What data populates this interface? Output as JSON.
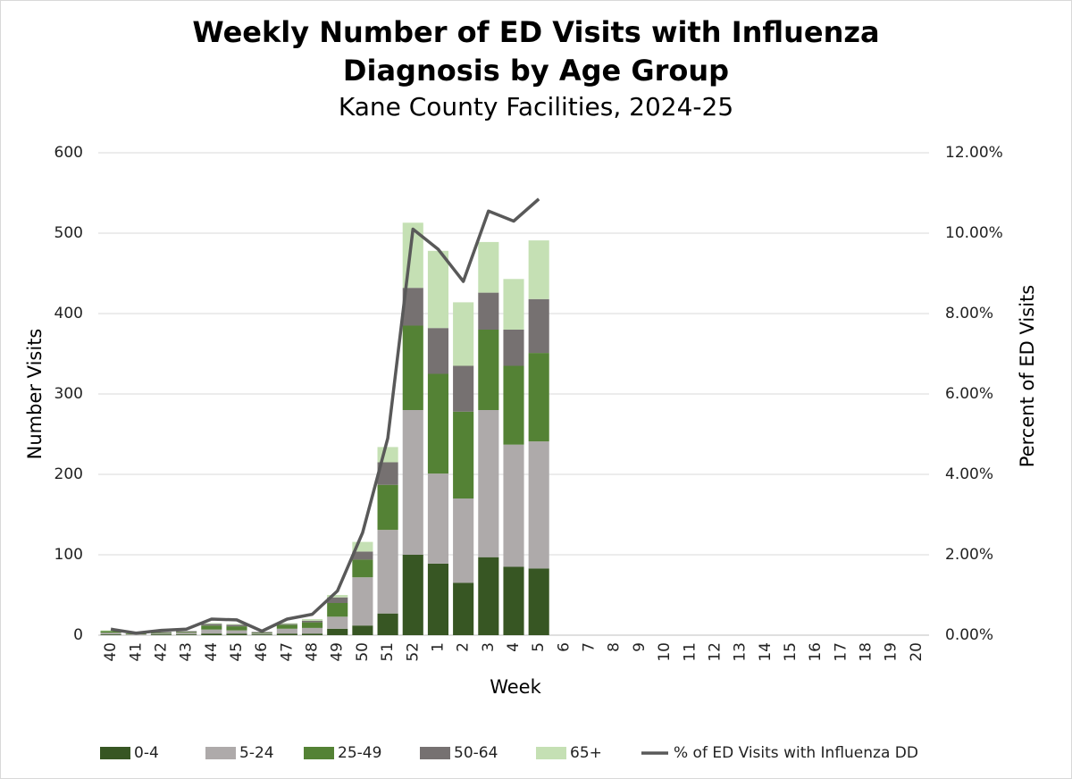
{
  "chart_data": {
    "type": "bar",
    "title": [
      "Weekly Number of ED Visits with Influenza",
      "Diagnosis by Age Group"
    ],
    "subtitle": "Kane County Facilities, 2024-25",
    "x_label": "Week",
    "y_label": "Number Visits",
    "y2_label": "Percent of ED Visits",
    "categories": [
      "40",
      "41",
      "42",
      "43",
      "44",
      "45",
      "46",
      "47",
      "48",
      "49",
      "50",
      "51",
      "52",
      "1",
      "2",
      "3",
      "4",
      "5",
      "6",
      "7",
      "8",
      "9",
      "10",
      "11",
      "12",
      "13",
      "14",
      "15",
      "16",
      "17",
      "18",
      "19",
      "20"
    ],
    "stacked": true,
    "grid": true,
    "legend": "bottom",
    "ylim": [
      0,
      600
    ],
    "yticks": [
      0,
      100,
      200,
      300,
      400,
      500,
      600
    ],
    "y2lim": [
      0,
      12
    ],
    "y2ticks": [
      {
        "value": 0,
        "label": "0.00%"
      },
      {
        "value": 2,
        "label": "2.00%"
      },
      {
        "value": 4,
        "label": "4.00%"
      },
      {
        "value": 6,
        "label": "6.00%"
      },
      {
        "value": 8,
        "label": "8.00%"
      },
      {
        "value": 10,
        "label": "10.00%"
      },
      {
        "value": 12,
        "label": "12.00%"
      }
    ],
    "series": [
      {
        "name": "0-4",
        "color": "#375623",
        "type": "bar",
        "values": [
          1,
          0,
          1,
          1,
          2,
          2,
          1,
          2,
          2,
          8,
          12,
          27,
          100,
          89,
          65,
          97,
          85,
          83,
          null,
          null,
          null,
          null,
          null,
          null,
          null,
          null,
          null,
          null,
          null,
          null,
          null,
          null,
          null
        ]
      },
      {
        "name": "5-24",
        "color": "#aeaaaa",
        "type": "bar",
        "values": [
          2,
          1,
          1,
          2,
          5,
          4,
          1,
          6,
          7,
          15,
          60,
          104,
          180,
          112,
          105,
          183,
          152,
          158,
          null,
          null,
          null,
          null,
          null,
          null,
          null,
          null,
          null,
          null,
          null,
          null,
          null,
          null,
          null
        ]
      },
      {
        "name": "25-49",
        "color": "#548235",
        "type": "bar",
        "values": [
          2,
          1,
          1,
          1,
          5,
          5,
          1,
          5,
          7,
          17,
          22,
          56,
          105,
          124,
          108,
          100,
          98,
          110,
          null,
          null,
          null,
          null,
          null,
          null,
          null,
          null,
          null,
          null,
          null,
          null,
          null,
          null,
          null
        ]
      },
      {
        "name": "50-64",
        "color": "#767171",
        "type": "bar",
        "values": [
          0,
          0,
          1,
          1,
          2,
          2,
          1,
          1,
          2,
          7,
          10,
          28,
          47,
          57,
          57,
          46,
          45,
          67,
          null,
          null,
          null,
          null,
          null,
          null,
          null,
          null,
          null,
          null,
          null,
          null,
          null,
          null,
          null
        ]
      },
      {
        "name": "65+",
        "color": "#c5e0b4",
        "type": "bar",
        "values": [
          1,
          0,
          0,
          0,
          1,
          1,
          0,
          1,
          2,
          3,
          12,
          19,
          81,
          96,
          79,
          63,
          63,
          73,
          null,
          null,
          null,
          null,
          null,
          null,
          null,
          null,
          null,
          null,
          null,
          null,
          null,
          null,
          null
        ]
      },
      {
        "name": "% of ED Visits with Influenza DD",
        "color": "#595959",
        "type": "line",
        "axis": "y2",
        "values": [
          0.15,
          0.05,
          0.12,
          0.15,
          0.4,
          0.38,
          0.1,
          0.4,
          0.52,
          1.1,
          2.55,
          4.9,
          10.1,
          9.6,
          8.8,
          10.55,
          10.3,
          10.85,
          null,
          null,
          null,
          null,
          null,
          null,
          null,
          null,
          null,
          null,
          null,
          null,
          null,
          null,
          null
        ]
      }
    ]
  }
}
